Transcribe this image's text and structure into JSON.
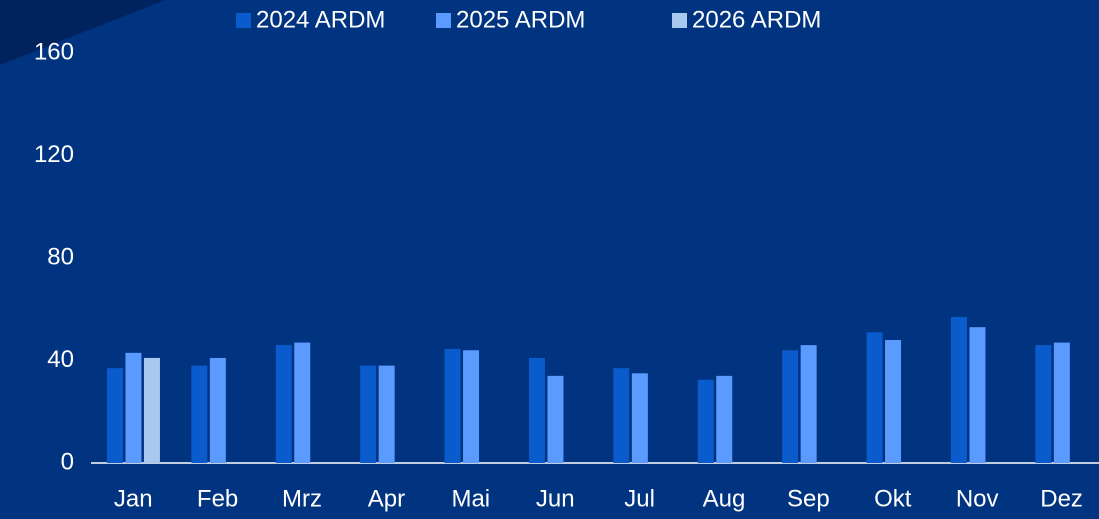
{
  "chart_data": {
    "type": "bar",
    "categories": [
      "Jan",
      "Feb",
      "Mrz",
      "Apr",
      "Mai",
      "Jun",
      "Jul",
      "Aug",
      "Sep",
      "Okt",
      "Nov",
      "Dez"
    ],
    "series": [
      {
        "name": "2024 ARDM",
        "color": "#0a5bcc",
        "values": [
          37,
          38,
          46,
          38,
          44.5,
          41,
          37,
          32.5,
          44,
          51,
          57,
          46
        ]
      },
      {
        "name": "2025 ARDM",
        "color": "#5b9bff",
        "values": [
          43,
          41,
          47,
          38,
          44,
          34,
          35,
          34,
          46,
          48,
          53,
          47
        ]
      },
      {
        "name": "2026 ARDM",
        "color": "#a9c8f0",
        "values": [
          41,
          null,
          null,
          null,
          null,
          null,
          null,
          null,
          null,
          null,
          null,
          null
        ]
      }
    ],
    "ylim": [
      0,
      160
    ],
    "yticks": [
      0,
      40,
      80,
      120,
      160
    ],
    "grid": false,
    "legend": "top"
  }
}
